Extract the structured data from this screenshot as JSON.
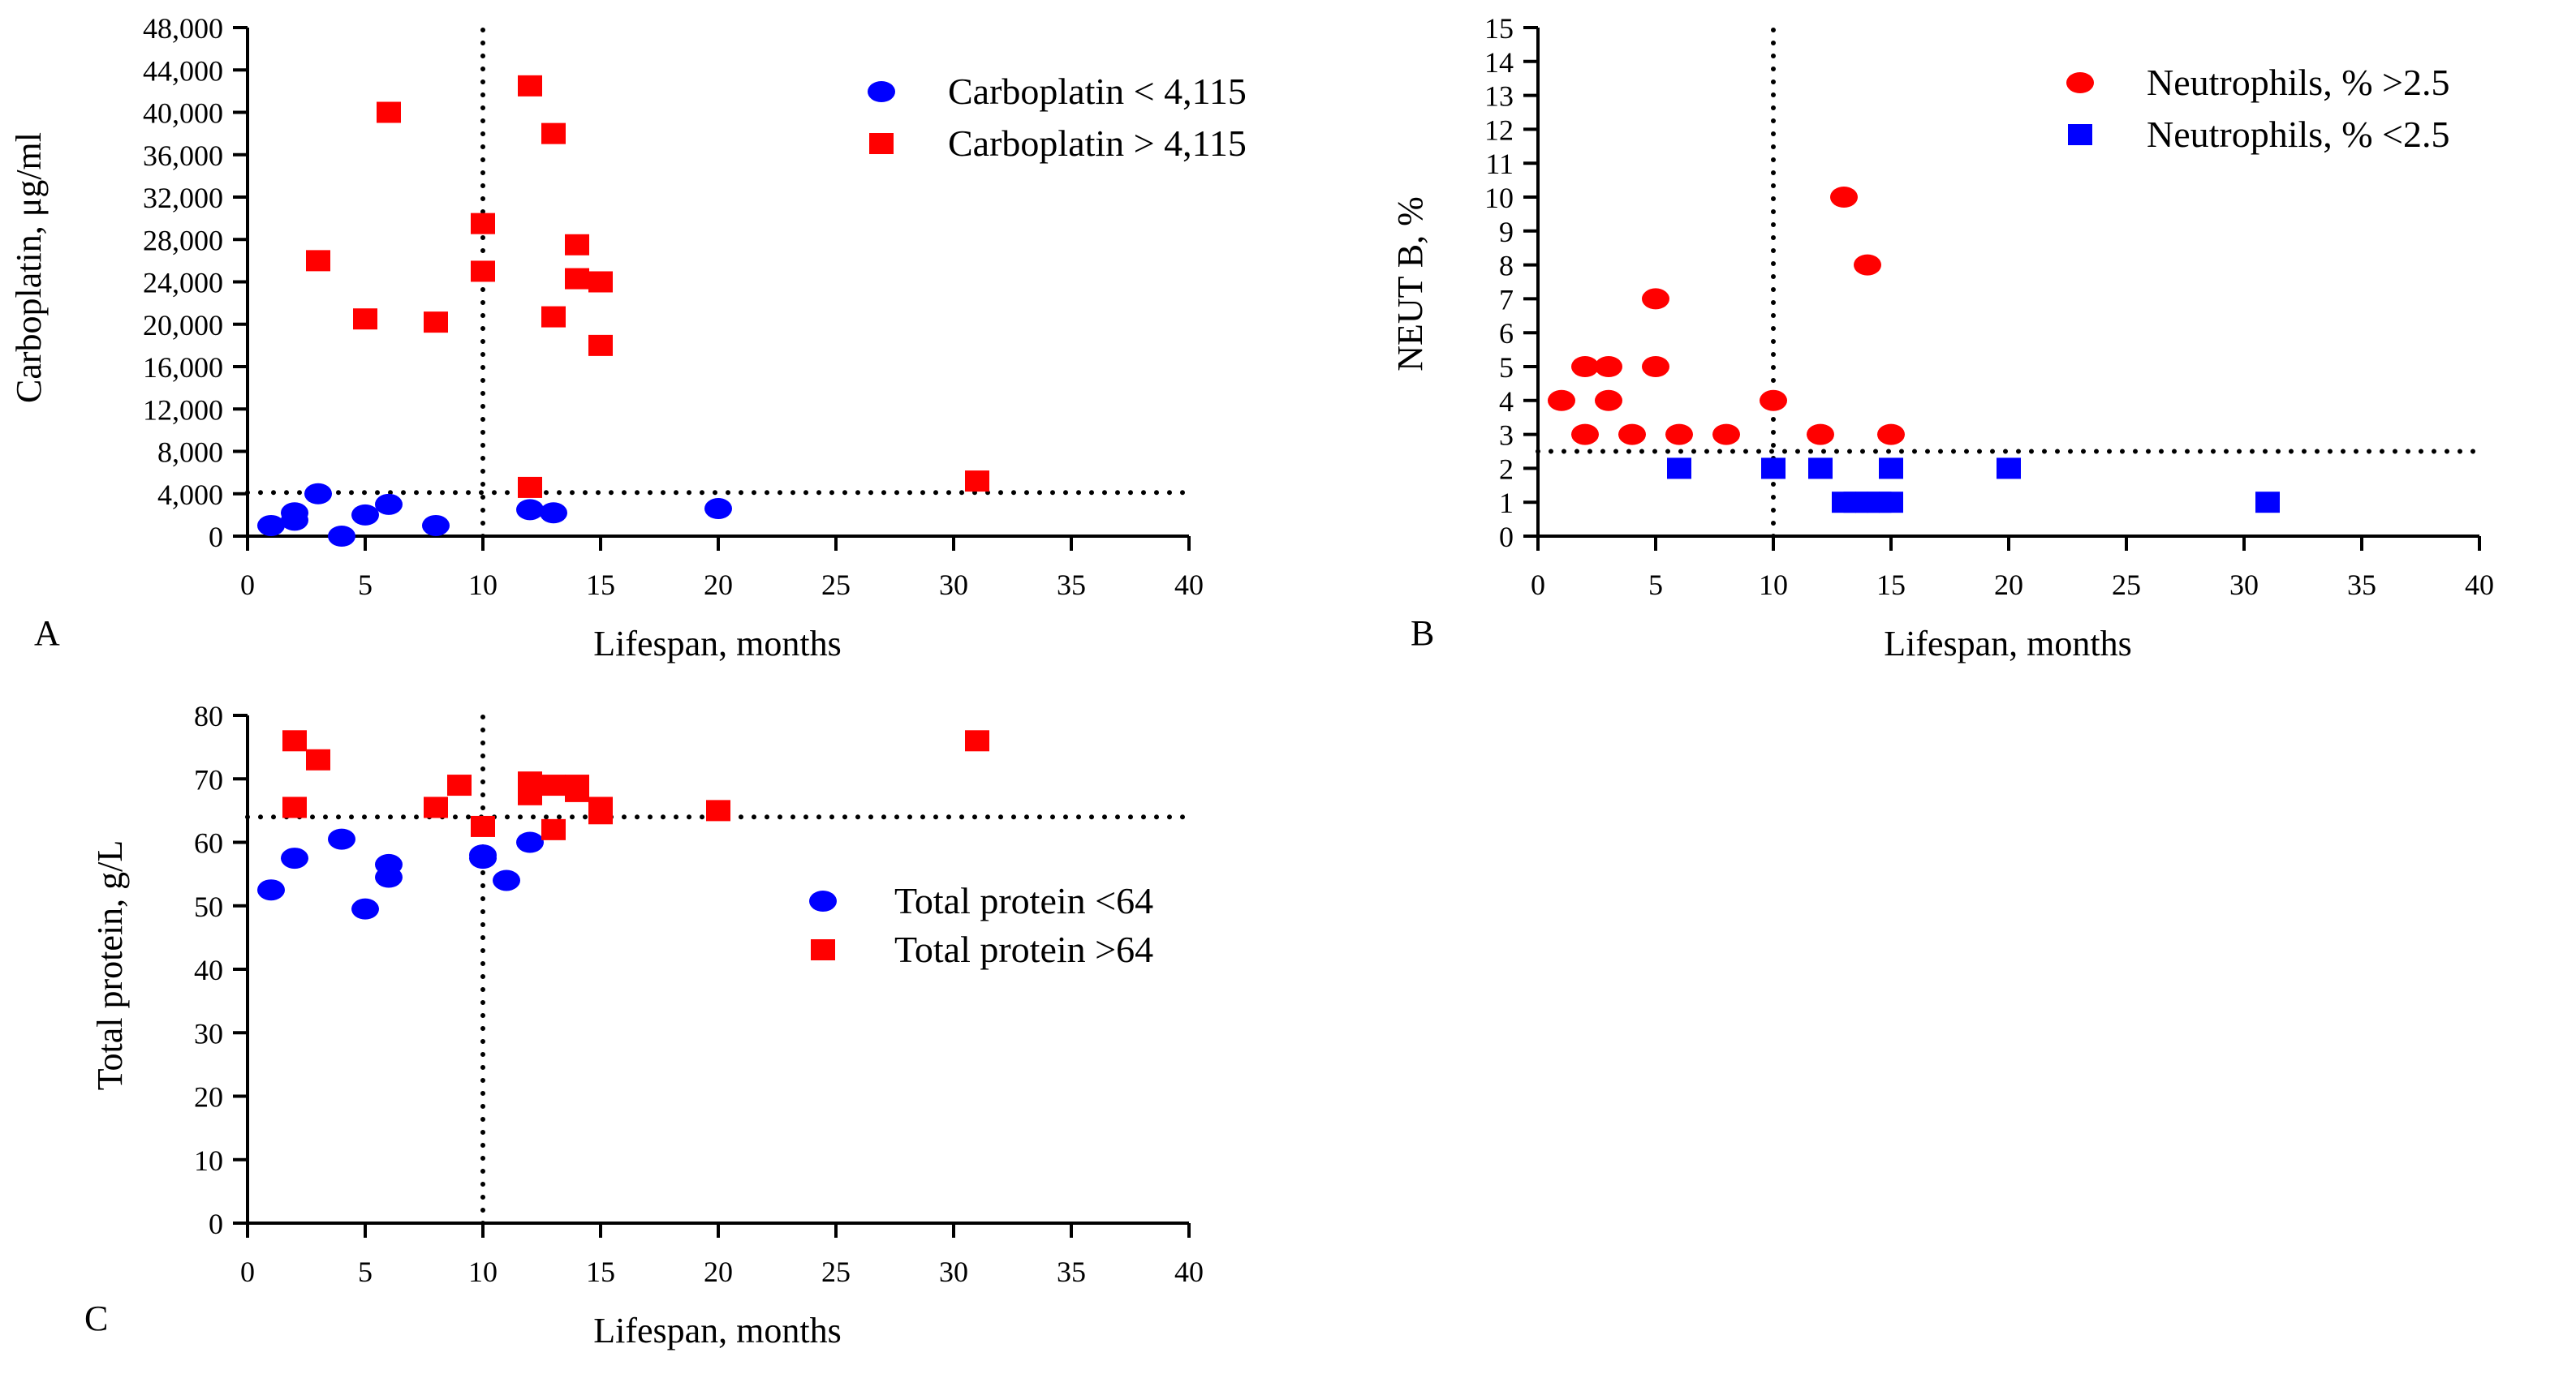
{
  "chart_data": [
    {
      "panel": "A",
      "type": "scatter",
      "xlabel": "Lifespan, months",
      "ylabel": "Carboplatin, μg/ml",
      "xlim": [
        0,
        40
      ],
      "ylim": [
        0,
        48000
      ],
      "xticks": [
        0,
        5,
        10,
        15,
        20,
        25,
        30,
        35,
        40
      ],
      "yticks": [
        0,
        4000,
        8000,
        12000,
        16000,
        20000,
        24000,
        28000,
        32000,
        36000,
        40000,
        44000,
        48000
      ],
      "x_tick_labels": [
        "0",
        "5",
        "10",
        "15",
        "20",
        "25",
        "30",
        "35",
        "40"
      ],
      "y_tick_labels": [
        "0",
        "4,000",
        "8,000",
        "12,000",
        "16,000",
        "20,000",
        "24,000",
        "28,000",
        "32,000",
        "36,000",
        "40,000",
        "44,000",
        "48,000"
      ],
      "reference_lines": {
        "x": 10,
        "y": 4115
      },
      "legend_position": "top-right",
      "series": [
        {
          "name": "Carboplatin < 4,115",
          "marker": "circle",
          "color": "#0000ff",
          "points": [
            [
              1,
              1000
            ],
            [
              2,
              1500
            ],
            [
              2,
              2200
            ],
            [
              3,
              4000
            ],
            [
              4,
              0
            ],
            [
              5,
              2000
            ],
            [
              6,
              3000
            ],
            [
              8,
              1000
            ],
            [
              12,
              2500
            ],
            [
              13,
              2200
            ],
            [
              20,
              2600
            ]
          ]
        },
        {
          "name": "Carboplatin > 4,115",
          "marker": "square",
          "color": "#ff0000",
          "points": [
            [
              3,
              26000
            ],
            [
              5,
              20500
            ],
            [
              6,
              40000
            ],
            [
              8,
              20200
            ],
            [
              10,
              29500
            ],
            [
              10,
              25000
            ],
            [
              12,
              42500
            ],
            [
              12,
              4600
            ],
            [
              13,
              38000
            ],
            [
              13,
              20700
            ],
            [
              14,
              27500
            ],
            [
              14,
              24300
            ],
            [
              15,
              24000
            ],
            [
              15,
              18000
            ],
            [
              31,
              5200
            ]
          ]
        }
      ]
    },
    {
      "panel": "B",
      "type": "scatter",
      "xlabel": "Lifespan, months",
      "ylabel": "NEUT B, %",
      "xlim": [
        0,
        40
      ],
      "ylim": [
        0,
        15
      ],
      "xticks": [
        0,
        5,
        10,
        15,
        20,
        25,
        30,
        35,
        40
      ],
      "yticks": [
        0,
        1,
        2,
        3,
        4,
        5,
        6,
        7,
        8,
        9,
        10,
        11,
        12,
        13,
        14,
        15
      ],
      "x_tick_labels": [
        "0",
        "5",
        "10",
        "15",
        "20",
        "25",
        "30",
        "35",
        "40"
      ],
      "y_tick_labels": [
        "0",
        "1",
        "2",
        "3",
        "4",
        "5",
        "6",
        "7",
        "8",
        "9",
        "10",
        "11",
        "12",
        "13",
        "14",
        "15"
      ],
      "reference_lines": {
        "x": 10,
        "y": 2.5
      },
      "legend_position": "top-right",
      "series": [
        {
          "name": "Neutrophils, % >2.5",
          "marker": "circle",
          "color": "#ff0000",
          "points": [
            [
              1,
              4
            ],
            [
              2,
              5
            ],
            [
              2,
              3
            ],
            [
              3,
              5
            ],
            [
              3,
              4
            ],
            [
              4,
              3
            ],
            [
              5,
              7
            ],
            [
              5,
              5
            ],
            [
              6,
              3
            ],
            [
              8,
              3
            ],
            [
              10,
              4
            ],
            [
              12,
              3
            ],
            [
              13,
              10
            ],
            [
              14,
              8
            ],
            [
              15,
              3
            ]
          ]
        },
        {
          "name": "Neutrophils, % <2.5",
          "marker": "square",
          "color": "#0000ff",
          "points": [
            [
              6,
              2
            ],
            [
              10,
              2
            ],
            [
              12,
              2
            ],
            [
              13,
              1
            ],
            [
              13.5,
              1
            ],
            [
              14,
              1
            ],
            [
              14.5,
              1
            ],
            [
              15,
              1
            ],
            [
              15,
              2
            ],
            [
              20,
              2
            ],
            [
              31,
              1
            ]
          ]
        }
      ]
    },
    {
      "panel": "C",
      "type": "scatter",
      "xlabel": "Lifespan, months",
      "ylabel": "Total protein, g/L",
      "xlim": [
        0,
        40
      ],
      "ylim": [
        0,
        80
      ],
      "xticks": [
        0,
        5,
        10,
        15,
        20,
        25,
        30,
        35,
        40
      ],
      "yticks": [
        0,
        10,
        20,
        30,
        40,
        50,
        60,
        70,
        80
      ],
      "x_tick_labels": [
        "0",
        "5",
        "10",
        "15",
        "20",
        "25",
        "30",
        "35",
        "40"
      ],
      "y_tick_labels": [
        "0",
        "10",
        "20",
        "30",
        "40",
        "50",
        "60",
        "70",
        "80"
      ],
      "reference_lines": {
        "x": 10,
        "y": 64
      },
      "legend_position": "center-right",
      "series": [
        {
          "name": "Total protein <64",
          "marker": "circle",
          "color": "#0000ff",
          "points": [
            [
              1,
              52.5
            ],
            [
              2,
              57.5
            ],
            [
              4,
              60.5
            ],
            [
              5,
              49.5
            ],
            [
              6,
              56.5
            ],
            [
              6,
              54.5
            ],
            [
              10,
              58
            ],
            [
              10,
              57.5
            ],
            [
              11,
              54
            ],
            [
              12,
              60
            ]
          ]
        },
        {
          "name": "Total protein >64",
          "marker": "square",
          "color": "#ff0000",
          "points": [
            [
              2,
              76
            ],
            [
              2,
              65.5
            ],
            [
              3,
              73
            ],
            [
              8,
              65.5
            ],
            [
              9,
              69
            ],
            [
              10,
              62.5
            ],
            [
              12,
              69.5
            ],
            [
              12,
              67.5
            ],
            [
              13,
              69
            ],
            [
              13,
              62
            ],
            [
              14,
              69
            ],
            [
              14,
              68
            ],
            [
              15,
              65.5
            ],
            [
              15,
              64.5
            ],
            [
              20,
              65
            ],
            [
              31,
              76
            ]
          ]
        }
      ]
    }
  ],
  "panel_letters": [
    "A",
    "B",
    "C"
  ]
}
